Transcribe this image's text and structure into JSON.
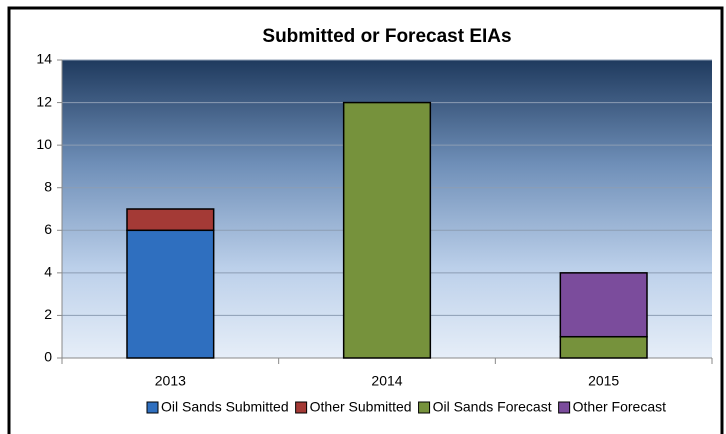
{
  "chart_data": {
    "type": "stacked-bar",
    "title": "Submitted or Forecast EIAs",
    "categories": [
      "2013",
      "2014",
      "2015"
    ],
    "series": [
      {
        "name": "Oil Sands Submitted",
        "color": "#2f6fbf",
        "values": [
          6,
          0,
          0
        ]
      },
      {
        "name": "Other Submitted",
        "color": "#a43a36",
        "values": [
          1,
          0,
          0
        ]
      },
      {
        "name": "Oil Sands Forecast",
        "color": "#76923c",
        "values": [
          0,
          12,
          1
        ]
      },
      {
        "name": "Other Forecast",
        "color": "#7b4c9c",
        "values": [
          0,
          0,
          3
        ]
      }
    ],
    "ylim": [
      0,
      14
    ],
    "yticks": [
      0,
      2,
      4,
      6,
      8,
      10,
      12,
      14
    ],
    "grid": true,
    "legend": "bottom"
  }
}
